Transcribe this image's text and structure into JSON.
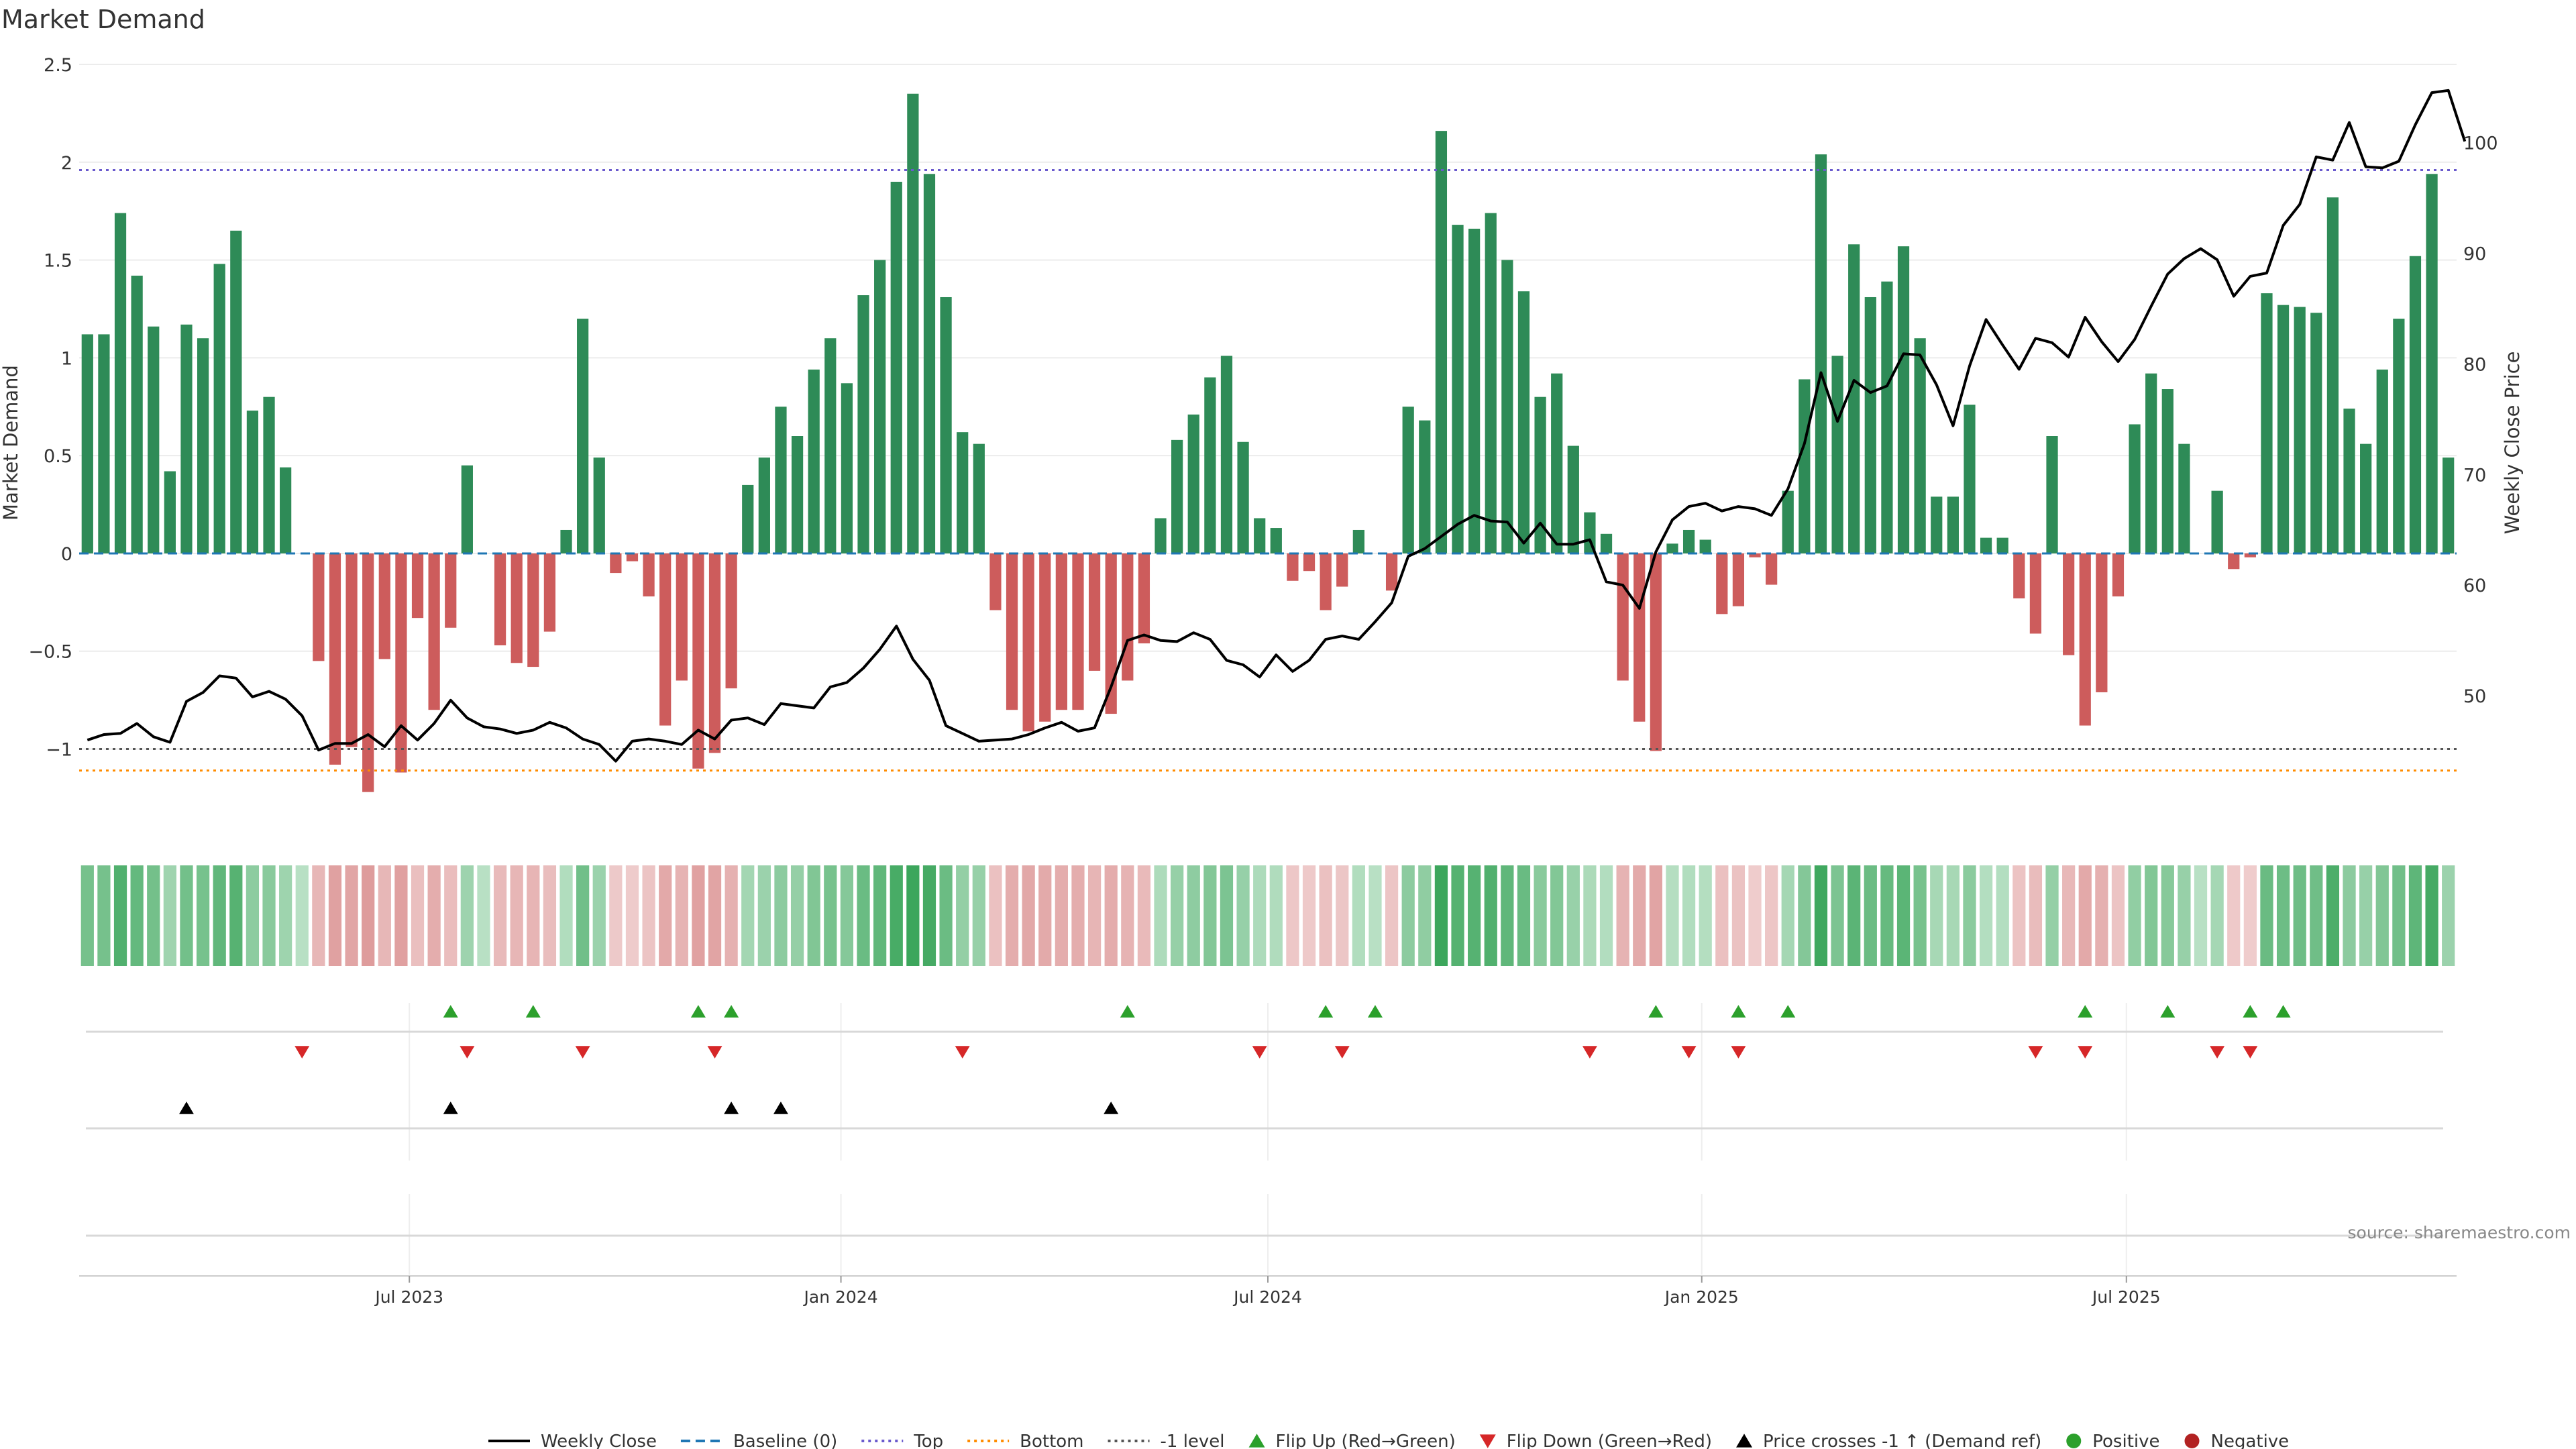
{
  "chart_data": {
    "type": "bar",
    "title": "Market Demand",
    "ylabel_left": "Market Demand",
    "ylabel_right": "Weekly Close Price",
    "ylim_left": [
      -1.42,
      2.5
    ],
    "ylim_right": [
      37.77,
      107.05
    ],
    "yticks_left": [
      {
        "v": 2.5,
        "label": "2.5"
      },
      {
        "v": 2.0,
        "label": "2"
      },
      {
        "v": 1.5,
        "label": "1.5"
      },
      {
        "v": 1.0,
        "label": "1"
      },
      {
        "v": 0.5,
        "label": "0.5"
      },
      {
        "v": 0.0,
        "label": "0"
      },
      {
        "v": -0.5,
        "label": "−0.5"
      },
      {
        "v": -1.0,
        "label": "−1"
      }
    ],
    "yticks_right": [
      {
        "v": 100,
        "label": "100"
      },
      {
        "v": 90,
        "label": "90"
      },
      {
        "v": 80,
        "label": "80"
      },
      {
        "v": 70,
        "label": "70"
      },
      {
        "v": 60,
        "label": "60"
      },
      {
        "v": 50,
        "label": "50"
      }
    ],
    "xticks": [
      {
        "i": 20,
        "label": "Jul 2023"
      },
      {
        "i": 46.14,
        "label": "Jan 2024"
      },
      {
        "i": 72,
        "label": "Jul 2024"
      },
      {
        "i": 98.28,
        "label": "Jan 2025"
      },
      {
        "i": 124,
        "label": "Jul 2025"
      }
    ],
    "levels": {
      "top": 1.96,
      "bottom": -1.11,
      "minus_one": -1.0,
      "baseline": 0
    },
    "demand": [
      1.12,
      1.12,
      1.74,
      1.42,
      1.16,
      0.42,
      1.17,
      1.1,
      1.48,
      1.65,
      0.73,
      0.8,
      0.44,
      0.0,
      -0.55,
      -1.08,
      -0.99,
      -1.22,
      -0.54,
      -1.12,
      -0.33,
      -0.8,
      -0.38,
      0.45,
      0.0,
      -0.47,
      -0.56,
      -0.58,
      -0.4,
      0.12,
      1.2,
      0.49,
      -0.1,
      -0.04,
      -0.22,
      -0.88,
      -0.65,
      -1.1,
      -1.02,
      -0.69,
      0.35,
      0.49,
      0.75,
      0.6,
      0.94,
      1.1,
      0.87,
      1.32,
      1.5,
      1.9,
      2.35,
      1.94,
      1.31,
      0.62,
      0.56,
      -0.29,
      -0.8,
      -0.91,
      -0.86,
      -0.8,
      -0.8,
      -0.6,
      -0.82,
      -0.65,
      -0.46,
      0.18,
      0.58,
      0.71,
      0.9,
      1.01,
      0.57,
      0.18,
      0.13,
      -0.14,
      -0.09,
      -0.29,
      -0.17,
      0.12,
      0.0,
      -0.19,
      0.75,
      0.68,
      2.16,
      1.68,
      1.66,
      1.74,
      1.5,
      1.34,
      0.8,
      0.92,
      0.55,
      0.21,
      0.1,
      -0.65,
      -0.86,
      -1.01,
      0.05,
      0.12,
      0.07,
      -0.31,
      -0.27,
      -0.02,
      -0.16,
      0.32,
      0.89,
      2.04,
      1.01,
      1.58,
      1.31,
      1.39,
      1.57,
      1.1,
      0.29,
      0.29,
      0.76,
      0.08,
      0.08,
      -0.23,
      -0.41,
      0.6,
      -0.52,
      -0.88,
      -0.71,
      -0.22,
      0.66,
      0.92,
      0.84,
      0.56,
      0.0,
      0.32,
      -0.08,
      -0.02,
      1.33,
      1.27,
      1.26,
      1.23,
      1.82,
      0.74,
      0.56,
      0.94,
      1.2,
      1.52,
      1.94,
      0.49
    ],
    "price": [
      46.0,
      46.5,
      46.6,
      47.5,
      46.3,
      45.8,
      49.5,
      50.3,
      51.8,
      51.6,
      49.9,
      50.4,
      49.7,
      48.2,
      45.1,
      45.7,
      45.7,
      46.5,
      45.4,
      47.3,
      46.0,
      47.5,
      49.6,
      48.0,
      47.2,
      47.0,
      46.6,
      46.9,
      47.6,
      47.1,
      46.1,
      45.6,
      44.1,
      45.9,
      46.1,
      45.9,
      45.6,
      46.9,
      46.1,
      47.8,
      48.0,
      47.4,
      49.3,
      49.1,
      48.9,
      50.8,
      51.2,
      52.5,
      54.2,
      56.3,
      53.3,
      51.4,
      47.3,
      46.6,
      45.9,
      46.0,
      46.1,
      46.5,
      47.1,
      47.6,
      46.8,
      47.1,
      50.8,
      55.0,
      55.5,
      55.0,
      54.9,
      55.7,
      55.1,
      53.2,
      52.8,
      51.7,
      53.7,
      52.2,
      53.2,
      55.1,
      55.4,
      55.1,
      56.7,
      58.4,
      62.6,
      63.3,
      64.4,
      65.5,
      66.3,
      65.8,
      65.7,
      63.8,
      65.6,
      63.7,
      63.7,
      64.1,
      60.3,
      60.0,
      57.9,
      63.0,
      65.9,
      67.1,
      67.4,
      66.7,
      67.1,
      66.9,
      66.3,
      68.7,
      72.8,
      79.2,
      74.8,
      78.5,
      77.4,
      78.0,
      80.9,
      80.8,
      78.1,
      74.4,
      79.8,
      84.0,
      81.7,
      79.5,
      82.3,
      81.9,
      80.6,
      84.2,
      82.0,
      80.2,
      82.2,
      85.2,
      88.1,
      89.5,
      90.4,
      89.4,
      86.1,
      87.9,
      88.2,
      92.5,
      94.4,
      98.7,
      98.4,
      101.8,
      97.8,
      97.7,
      98.3,
      101.6,
      104.5,
      104.7,
      100.1
    ],
    "flips_up": [
      22,
      27,
      37,
      39,
      63,
      75,
      78,
      95,
      100,
      103,
      121,
      126,
      131,
      133
    ],
    "flips_down": [
      13,
      23,
      30,
      38,
      53,
      71,
      76,
      91,
      97,
      100,
      118,
      121,
      129,
      131
    ],
    "price_crosses": [
      6,
      22,
      39,
      42,
      62
    ],
    "colors": {
      "positive_bar": "#2e8b57",
      "negative_bar": "#cd5c5c",
      "flip_up": "#2ca02c",
      "flip_down": "#d62728",
      "price_line": "#000000",
      "top_line": "#6a5acd",
      "bottom_line": "#ff8c00",
      "minus_one_line": "#555555",
      "baseline": "#1f77b4"
    },
    "source": "source: sharemaestro.com",
    "legend": [
      {
        "kind": "line",
        "label": "Weekly Close",
        "color": "#000000",
        "dash": ""
      },
      {
        "kind": "line",
        "label": "Baseline (0)",
        "color": "#1f77b4",
        "dash": "14,8"
      },
      {
        "kind": "line",
        "label": "Top",
        "color": "#6a5acd",
        "dash": "4,6"
      },
      {
        "kind": "line",
        "label": "Bottom",
        "color": "#ff8c00",
        "dash": "4,6"
      },
      {
        "kind": "line",
        "label": "-1 level",
        "color": "#555555",
        "dash": "4,6"
      },
      {
        "kind": "tri-up",
        "label": "Flip Up (Red→Green)",
        "color": "#2ca02c"
      },
      {
        "kind": "tri-down",
        "label": "Flip Down (Green→Red)",
        "color": "#d62728"
      },
      {
        "kind": "tri-up",
        "label": "Price crosses -1 ↑ (Demand ref)",
        "color": "#000000"
      },
      {
        "kind": "dot",
        "label": "Positive",
        "color": "#2ca02c"
      },
      {
        "kind": "dot",
        "label": "Negative",
        "color": "#b22222"
      }
    ]
  }
}
